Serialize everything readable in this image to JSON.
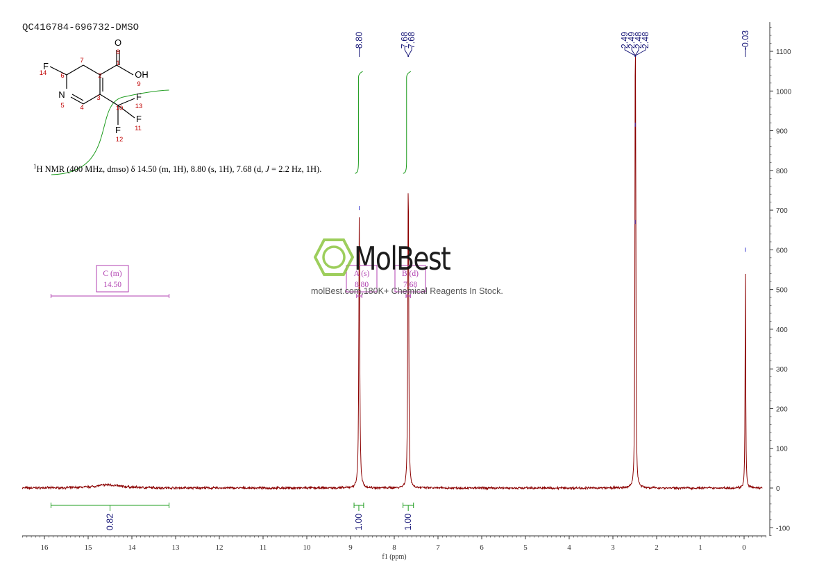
{
  "header": {
    "sample_title": "QC416784-696732-DMSO"
  },
  "description": {
    "prefix_super": "1",
    "text_a": "H NMR (400 MHz, dmso) δ 14.50 (m, 1H), 8.80 (s, 1H), 7.68 (d, ",
    "text_j": "J",
    "text_b": " = 2.2 Hz, 1H)."
  },
  "watermark": {
    "logo_text": "MolBest",
    "tagline": "molBest.com,180K+ Chemical Reagents In Stock."
  },
  "structure": {
    "atoms": [
      {
        "symbol": "F",
        "number": "14"
      },
      {
        "symbol": "",
        "number": "6"
      },
      {
        "symbol": "",
        "number": "7"
      },
      {
        "symbol": "",
        "number": "2"
      },
      {
        "symbol": "",
        "number": "1"
      },
      {
        "symbol": "O",
        "number": "8"
      },
      {
        "symbol": "OH",
        "number": "9"
      },
      {
        "symbol": "N",
        "number": "5"
      },
      {
        "symbol": "",
        "number": "4"
      },
      {
        "symbol": "",
        "number": "3"
      },
      {
        "symbol": "",
        "number": "10"
      },
      {
        "symbol": "F",
        "number": "13"
      },
      {
        "symbol": "F",
        "number": "11"
      },
      {
        "symbol": "F",
        "number": "12"
      }
    ],
    "colors": {
      "bonds": "#000000",
      "numbers": "#c00000"
    }
  },
  "chart_data": {
    "type": "line",
    "xlabel": "f1 (ppm)",
    "xlim": [
      16.5,
      -0.5
    ],
    "ylim": [
      -120,
      1180
    ],
    "x_ticks": [
      16,
      15,
      14,
      13,
      12,
      11,
      10,
      9,
      8,
      7,
      6,
      5,
      4,
      3,
      2,
      1,
      0
    ],
    "y_ticks": [
      -100,
      0,
      100,
      200,
      300,
      400,
      500,
      600,
      700,
      800,
      900,
      1000,
      1100
    ],
    "series": [
      {
        "peaks": [
          {
            "ppm": 14.55,
            "height": 8,
            "width": 0.35
          },
          {
            "ppm": 8.8,
            "height": 695,
            "width": 0.012
          },
          {
            "ppm": 7.685,
            "height": 470,
            "width": 0.01
          },
          {
            "ppm": 7.675,
            "height": 470,
            "width": 0.01
          },
          {
            "ppm": 2.49,
            "height": 895,
            "width": 0.008
          },
          {
            "ppm": 2.48,
            "height": 650,
            "width": 0.008
          },
          {
            "ppm": -0.03,
            "height": 565,
            "width": 0.008
          }
        ]
      }
    ],
    "peak_labels": [
      {
        "label": "8.80",
        "ppm": [
          8.8
        ]
      },
      {
        "label": "7.68",
        "ppm": [
          7.685
        ]
      },
      {
        "label": "7.68",
        "ppm": [
          7.675
        ]
      },
      {
        "label": "2.49",
        "ppm": [
          2.495
        ]
      },
      {
        "label": "2.49",
        "ppm": [
          2.49
        ]
      },
      {
        "label": "2.48",
        "ppm": [
          2.485
        ]
      },
      {
        "label": "2.48",
        "ppm": [
          2.48
        ]
      },
      {
        "label": "-0.03",
        "ppm": [
          -0.03
        ]
      }
    ],
    "integrals": [
      {
        "value": "0.82",
        "from": 15.85,
        "to": 13.15
      },
      {
        "value": "1.00",
        "from": 8.92,
        "to": 8.7
      },
      {
        "value": "1.00",
        "from": 7.8,
        "to": 7.56
      }
    ],
    "multiplets": [
      {
        "name": "C (m)",
        "shift": "14.50",
        "from": 15.85,
        "to": 13.15
      },
      {
        "name": "A (s)",
        "shift": "8.80",
        "from": 8.86,
        "to": 8.74
      },
      {
        "name": "B (d)",
        "shift": "7.68",
        "from": 7.73,
        "to": 7.63
      }
    ],
    "colors": {
      "spectrum": "#8b0000",
      "peak_labels": "#1a1a7a",
      "integrals": "#1e9c1e",
      "multiplets": "#b03fb0",
      "axis": "#333333",
      "watermark_icon": "#8cc63f"
    }
  }
}
